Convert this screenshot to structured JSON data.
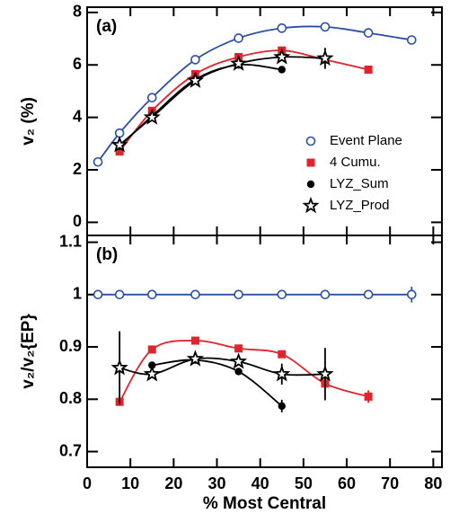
{
  "chart_data": [
    {
      "type": "line",
      "panel_label": "(a)",
      "ylabel": "v₂ (%)",
      "xlim": [
        0,
        82
      ],
      "ylim": [
        -0.5,
        8.2
      ],
      "yticks": [
        0,
        2,
        4,
        6,
        8
      ],
      "series": [
        {
          "name": "Event Plane",
          "color": "#2b4ea8",
          "marker": "circle-open",
          "x": [
            2.5,
            7.5,
            15,
            25,
            35,
            45,
            55,
            65,
            75
          ],
          "values": [
            2.3,
            3.4,
            4.75,
            6.2,
            7.02,
            7.4,
            7.45,
            7.22,
            6.95
          ],
          "errors": [
            null,
            null,
            null,
            null,
            null,
            null,
            null,
            null,
            null
          ]
        },
        {
          "name": "4 Cumu.",
          "color": "#e3222b",
          "marker": "square",
          "x": [
            7.5,
            15,
            25,
            35,
            45,
            55,
            65
          ],
          "values": [
            2.7,
            4.25,
            5.65,
            6.3,
            6.55,
            6.2,
            5.82
          ],
          "errors": [
            null,
            null,
            null,
            null,
            null,
            null,
            null
          ]
        },
        {
          "name": "LYZ_Sum",
          "color": "#000000",
          "marker": "circle",
          "x": [
            7.5,
            15,
            25,
            35,
            45
          ],
          "values": [
            2.9,
            4.05,
            5.45,
            6.0,
            5.82
          ],
          "errors": [
            null,
            null,
            null,
            null,
            null
          ]
        },
        {
          "name": "LYZ_Prod",
          "color": "#000000",
          "marker": "star",
          "x": [
            7.5,
            15,
            25,
            35,
            45,
            55
          ],
          "values": [
            2.95,
            4.0,
            5.4,
            6.05,
            6.3,
            6.25
          ],
          "errors": [
            null,
            null,
            null,
            null,
            null,
            0.4
          ]
        }
      ]
    },
    {
      "type": "line",
      "panel_label": "(b)",
      "ylabel": "v₂/v₂{EP}",
      "xlabel": "% Most Central",
      "xlim": [
        0,
        82
      ],
      "xticks": [
        0,
        10,
        20,
        30,
        40,
        50,
        60,
        70,
        80
      ],
      "ylim": [
        0.67,
        1.113
      ],
      "yticks": [
        0.7,
        0.8,
        0.9,
        1,
        1.1
      ],
      "series": [
        {
          "color": "#2b4ea8",
          "marker": "circle-open",
          "x": [
            2.5,
            7.5,
            15,
            25,
            35,
            45,
            55,
            65,
            75
          ],
          "values": [
            1,
            1,
            1,
            1,
            1,
            1,
            1,
            1,
            1
          ],
          "errors": [
            null,
            null,
            null,
            null,
            null,
            null,
            null,
            null,
            0.015
          ]
        },
        {
          "color": "#e3222b",
          "marker": "square",
          "x": [
            7.5,
            15,
            25,
            35,
            45,
            55,
            65
          ],
          "values": [
            0.795,
            0.895,
            0.912,
            0.897,
            0.886,
            0.83,
            0.805
          ],
          "errors": [
            null,
            null,
            null,
            null,
            null,
            null,
            0.012
          ]
        },
        {
          "color": "#000000",
          "marker": "circle",
          "x": [
            15,
            25,
            35,
            45
          ],
          "values": [
            0.865,
            0.875,
            0.853,
            0.787
          ],
          "errors": [
            null,
            null,
            null,
            0.012
          ]
        },
        {
          "color": "#000000",
          "marker": "star",
          "x": [
            7.5,
            15,
            25,
            35,
            45,
            55
          ],
          "values": [
            0.86,
            0.848,
            0.877,
            0.872,
            0.848,
            0.848
          ],
          "errors": [
            0.07,
            null,
            null,
            null,
            0.02,
            0.05
          ]
        }
      ]
    }
  ]
}
